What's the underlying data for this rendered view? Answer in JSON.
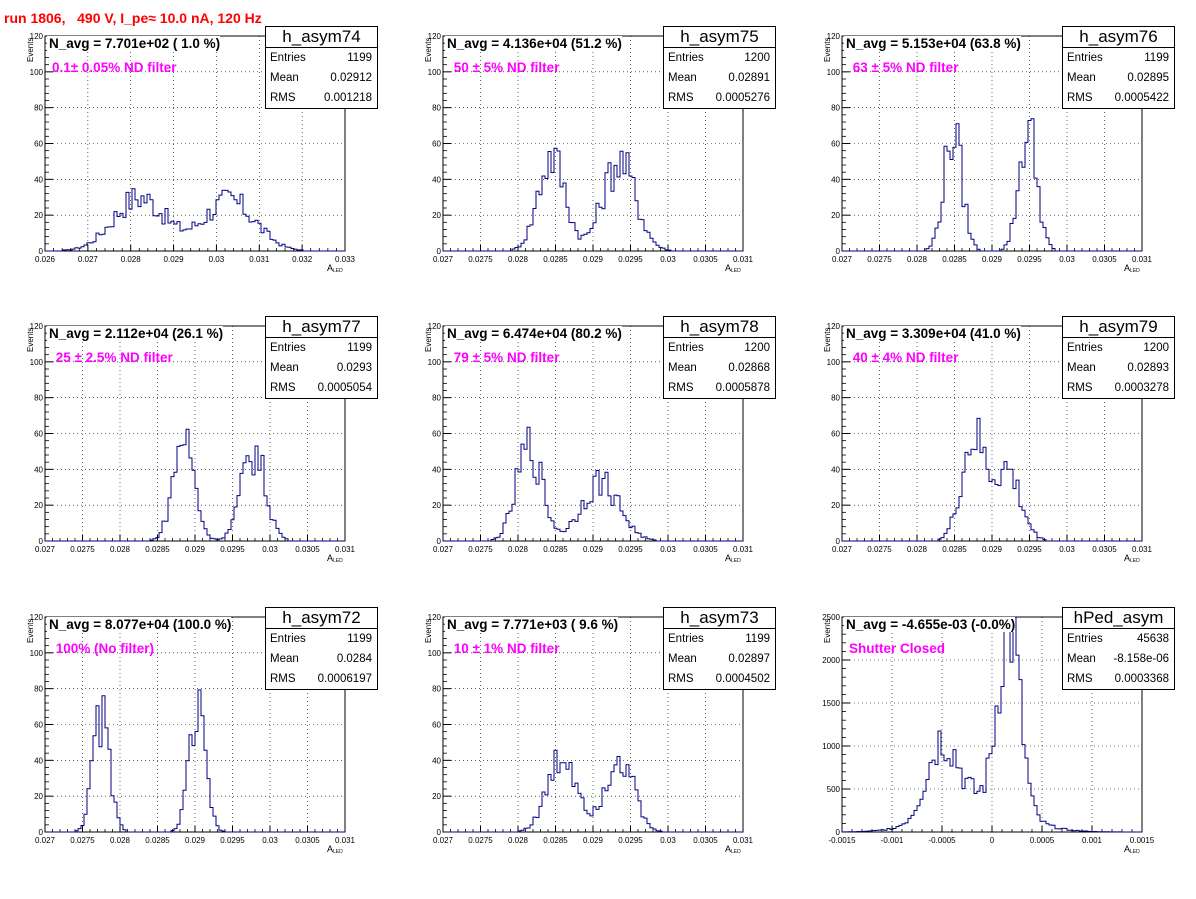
{
  "page": {
    "title": "run 1806,   490 V, I_pe≈ 10.0 nA, 120 Hz"
  },
  "colors": {
    "title": "#ff0000",
    "filter_label": "#ff00ff",
    "histogram_line": "#000080",
    "grid": "#000000"
  },
  "chart_data": [
    {
      "type": "histogram",
      "name": "h_asym74",
      "navg_label": "N_avg = 7.701e+02 ( 1.0 %)",
      "filter_label": "0.1± 0.05% ND filter",
      "stats": {
        "Entries": "1199",
        "Mean": "0.02912",
        "RMS": "0.001218"
      },
      "ylabel": "Events",
      "xlabel": "A",
      "xlabel_sub": "LED",
      "xlim": [
        0.026,
        0.033
      ],
      "ylim": [
        0,
        120
      ],
      "grid": true,
      "xticks": [
        0.026,
        0.027,
        0.028,
        0.029,
        0.03,
        0.031,
        0.032,
        0.033
      ],
      "xtick_labels": [
        "0.026",
        "0.027",
        "0.028",
        "0.029",
        "0.03",
        "0.031",
        "0.032",
        "0.033"
      ],
      "yticks": [
        0,
        20,
        40,
        60,
        80,
        100,
        120
      ],
      "ytick_labels": [
        "0",
        "20",
        "40",
        "60",
        "80",
        "100",
        "120"
      ],
      "peaks": [
        {
          "center": 0.0282,
          "width": 0.0006,
          "height": 30
        },
        {
          "center": 0.0303,
          "width": 0.0006,
          "height": 28
        }
      ]
    },
    {
      "type": "histogram",
      "name": "h_asym75",
      "navg_label": "N_avg = 4.136e+04 (51.2 %)",
      "filter_label": " 50 ± 5% ND filter",
      "stats": {
        "Entries": "1200",
        "Mean": "0.02891",
        "RMS": "0.0005276"
      },
      "ylabel": "Events",
      "xlabel": "A",
      "xlabel_sub": "LED",
      "xlim": [
        0.027,
        0.031
      ],
      "ylim": [
        0,
        120
      ],
      "grid": true,
      "xticks": [
        0.027,
        0.0275,
        0.028,
        0.0285,
        0.029,
        0.0295,
        0.03,
        0.0305,
        0.031
      ],
      "xtick_labels": [
        "0.027",
        "0.0275",
        "0.028",
        "0.0285",
        "0.029",
        "0.0295",
        "0.03",
        "0.0305",
        "0.031"
      ],
      "yticks": [
        0,
        20,
        40,
        60,
        80,
        100,
        120
      ],
      "ytick_labels": [
        "0",
        "20",
        "40",
        "60",
        "80",
        "100",
        "120"
      ],
      "peaks": [
        {
          "center": 0.02845,
          "width": 0.00018,
          "height": 53
        },
        {
          "center": 0.02935,
          "width": 0.00022,
          "height": 50
        }
      ]
    },
    {
      "type": "histogram",
      "name": "h_asym76",
      "navg_label": "N_avg = 5.153e+04 (63.8 %)",
      "filter_label": " 63 ± 5% ND filter",
      "stats": {
        "Entries": "1199",
        "Mean": "0.02895",
        "RMS": "0.0005422"
      },
      "ylabel": "Events",
      "xlabel": "A",
      "xlabel_sub": "LED",
      "xlim": [
        0.027,
        0.031
      ],
      "ylim": [
        0,
        120
      ],
      "grid": true,
      "xticks": [
        0.027,
        0.0275,
        0.028,
        0.0285,
        0.029,
        0.0295,
        0.03,
        0.0305,
        0.031
      ],
      "xtick_labels": [
        "0.027",
        "0.0275",
        "0.028",
        "0.0285",
        "0.029",
        "0.0295",
        "0.03",
        "0.0305",
        "0.031"
      ],
      "yticks": [
        0,
        20,
        40,
        60,
        80,
        100,
        120
      ],
      "ytick_labels": [
        "0",
        "20",
        "40",
        "60",
        "80",
        "100",
        "120"
      ],
      "peaks": [
        {
          "center": 0.02848,
          "width": 0.00012,
          "height": 66
        },
        {
          "center": 0.02948,
          "width": 0.00012,
          "height": 68
        }
      ]
    },
    {
      "type": "histogram",
      "name": "h_asym77",
      "navg_label": "N_avg = 2.112e+04 (26.1 %)",
      "filter_label": " 25 ± 2.5% ND filter",
      "stats": {
        "Entries": "1199",
        "Mean": "0.0293",
        "RMS": "0.0005054"
      },
      "ylabel": "Events",
      "xlabel": "A",
      "xlabel_sub": "LED",
      "xlim": [
        0.027,
        0.031
      ],
      "ylim": [
        0,
        120
      ],
      "grid": true,
      "xticks": [
        0.027,
        0.0275,
        0.028,
        0.0285,
        0.029,
        0.0295,
        0.03,
        0.0305,
        0.031
      ],
      "xtick_labels": [
        "0.027",
        "0.0275",
        "0.028",
        "0.0285",
        "0.029",
        "0.0295",
        "0.03",
        "0.0305",
        "0.031"
      ],
      "yticks": [
        0,
        20,
        40,
        60,
        80,
        100,
        120
      ],
      "ytick_labels": [
        "0",
        "20",
        "40",
        "60",
        "80",
        "100",
        "120"
      ],
      "peaks": [
        {
          "center": 0.02885,
          "width": 0.00014,
          "height": 58
        },
        {
          "center": 0.02978,
          "width": 0.00016,
          "height": 50
        }
      ]
    },
    {
      "type": "histogram",
      "name": "h_asym78",
      "navg_label": "N_avg = 6.474e+04 (80.2 %)",
      "filter_label": " 79 ± 5% ND filter",
      "stats": {
        "Entries": "1200",
        "Mean": "0.02868",
        "RMS": "0.0005878"
      },
      "ylabel": "Events",
      "xlabel": "A",
      "xlabel_sub": "LED",
      "xlim": [
        0.027,
        0.031
      ],
      "ylim": [
        0,
        120
      ],
      "grid": true,
      "xticks": [
        0.027,
        0.0275,
        0.028,
        0.0285,
        0.029,
        0.0295,
        0.03,
        0.0305,
        0.031
      ],
      "xtick_labels": [
        "0.027",
        "0.0275",
        "0.028",
        "0.0285",
        "0.029",
        "0.0295",
        "0.03",
        "0.0305",
        "0.031"
      ],
      "yticks": [
        0,
        20,
        40,
        60,
        80,
        100,
        120
      ],
      "ytick_labels": [
        "0",
        "20",
        "40",
        "60",
        "80",
        "100",
        "120"
      ],
      "peaks": [
        {
          "center": 0.02815,
          "width": 0.00017,
          "height": 52
        },
        {
          "center": 0.0291,
          "width": 0.00025,
          "height": 33
        }
      ]
    },
    {
      "type": "histogram",
      "name": "h_asym79",
      "navg_label": "N_avg = 3.309e+04 (41.0 %)",
      "filter_label": " 40 ± 4% ND filter",
      "stats": {
        "Entries": "1200",
        "Mean": "0.02893",
        "RMS": "0.0003278"
      },
      "ylabel": "Events",
      "xlabel": "A",
      "xlabel_sub": "LED",
      "xlim": [
        0.027,
        0.031
      ],
      "ylim": [
        0,
        120
      ],
      "grid": true,
      "xticks": [
        0.027,
        0.0275,
        0.028,
        0.0285,
        0.029,
        0.0295,
        0.03,
        0.0305,
        0.031
      ],
      "xtick_labels": [
        "0.027",
        "0.0275",
        "0.028",
        "0.0285",
        "0.029",
        "0.0295",
        "0.03",
        "0.0305",
        "0.031"
      ],
      "yticks": [
        0,
        20,
        40,
        60,
        80,
        100,
        120
      ],
      "ytick_labels": [
        "0",
        "20",
        "40",
        "60",
        "80",
        "100",
        "120"
      ],
      "peaks": [
        {
          "center": 0.02875,
          "width": 0.00016,
          "height": 55
        },
        {
          "center": 0.0292,
          "width": 0.00018,
          "height": 38
        }
      ]
    },
    {
      "type": "histogram",
      "name": "h_asym72",
      "navg_label": "N_avg = 8.077e+04 (100.0 %)",
      "filter_label": " 100% (No filter)",
      "stats": {
        "Entries": "1199",
        "Mean": "0.0284",
        "RMS": "0.0006197"
      },
      "ylabel": "Events",
      "xlabel": "A",
      "xlabel_sub": "LED",
      "xlim": [
        0.027,
        0.031
      ],
      "ylim": [
        0,
        120
      ],
      "grid": true,
      "xticks": [
        0.027,
        0.0275,
        0.028,
        0.0285,
        0.029,
        0.0295,
        0.03,
        0.0305,
        0.031
      ],
      "xtick_labels": [
        "0.027",
        "0.0275",
        "0.028",
        "0.0285",
        "0.029",
        "0.0295",
        "0.03",
        "0.0305",
        "0.031"
      ],
      "yticks": [
        0,
        20,
        40,
        60,
        80,
        100,
        120
      ],
      "ytick_labels": [
        "0",
        "20",
        "40",
        "60",
        "80",
        "100",
        "120"
      ],
      "peaks": [
        {
          "center": 0.02775,
          "width": 0.00011,
          "height": 65
        },
        {
          "center": 0.02903,
          "width": 0.00011,
          "height": 65
        }
      ]
    },
    {
      "type": "histogram",
      "name": "h_asym73",
      "navg_label": "N_avg = 7.771e+03 ( 9.6 %)",
      "filter_label": " 10 ± 1% ND filter",
      "stats": {
        "Entries": "1199",
        "Mean": "0.02897",
        "RMS": "0.0004502"
      },
      "ylabel": "Events",
      "xlabel": "A",
      "xlabel_sub": "LED",
      "xlim": [
        0.027,
        0.031
      ],
      "ylim": [
        0,
        120
      ],
      "grid": true,
      "xticks": [
        0.027,
        0.0275,
        0.028,
        0.0285,
        0.029,
        0.0295,
        0.03,
        0.0305,
        0.031
      ],
      "xtick_labels": [
        "0.027",
        "0.0275",
        "0.028",
        "0.0285",
        "0.029",
        "0.0295",
        "0.03",
        "0.0305",
        "0.031"
      ],
      "yticks": [
        0,
        20,
        40,
        60,
        80,
        100,
        120
      ],
      "ytick_labels": [
        "0",
        "20",
        "40",
        "60",
        "80",
        "100",
        "120"
      ],
      "peaks": [
        {
          "center": 0.0286,
          "width": 0.0002,
          "height": 42
        },
        {
          "center": 0.02935,
          "width": 0.00018,
          "height": 44
        }
      ]
    },
    {
      "type": "histogram",
      "name": "hPed_asym",
      "navg_label": "N_avg = -4.655e-03 (-0.0%)",
      "filter_label": "Shutter Closed",
      "stats": {
        "Entries": "45638",
        "Mean": "-8.158e-06",
        "RMS": "0.0003368"
      },
      "ylabel": "Events",
      "xlabel": "A",
      "xlabel_sub": "LED",
      "xlim": [
        -0.0015,
        0.0015
      ],
      "ylim": [
        0,
        2500
      ],
      "grid": true,
      "xticks": [
        -0.0015,
        -0.001,
        -0.0005,
        0,
        0.0005,
        0.001,
        0.0015
      ],
      "xtick_labels": [
        "-0.0015",
        "-0.001",
        "-0.0005",
        "0",
        "0.0005",
        "0.001",
        "0.0015"
      ],
      "yticks": [
        0,
        500,
        1000,
        1500,
        2000,
        2500
      ],
      "ytick_labels": [
        "0",
        "500",
        "1000",
        "1500",
        "2000",
        "2500"
      ],
      "peaks": [
        {
          "center": -0.0005,
          "width": 0.00015,
          "height": 820
        },
        {
          "center": 0.00017,
          "width": 0.00011,
          "height": 2150
        },
        {
          "center": -0.00015,
          "width": 0.0004,
          "height": 380
        }
      ]
    }
  ]
}
